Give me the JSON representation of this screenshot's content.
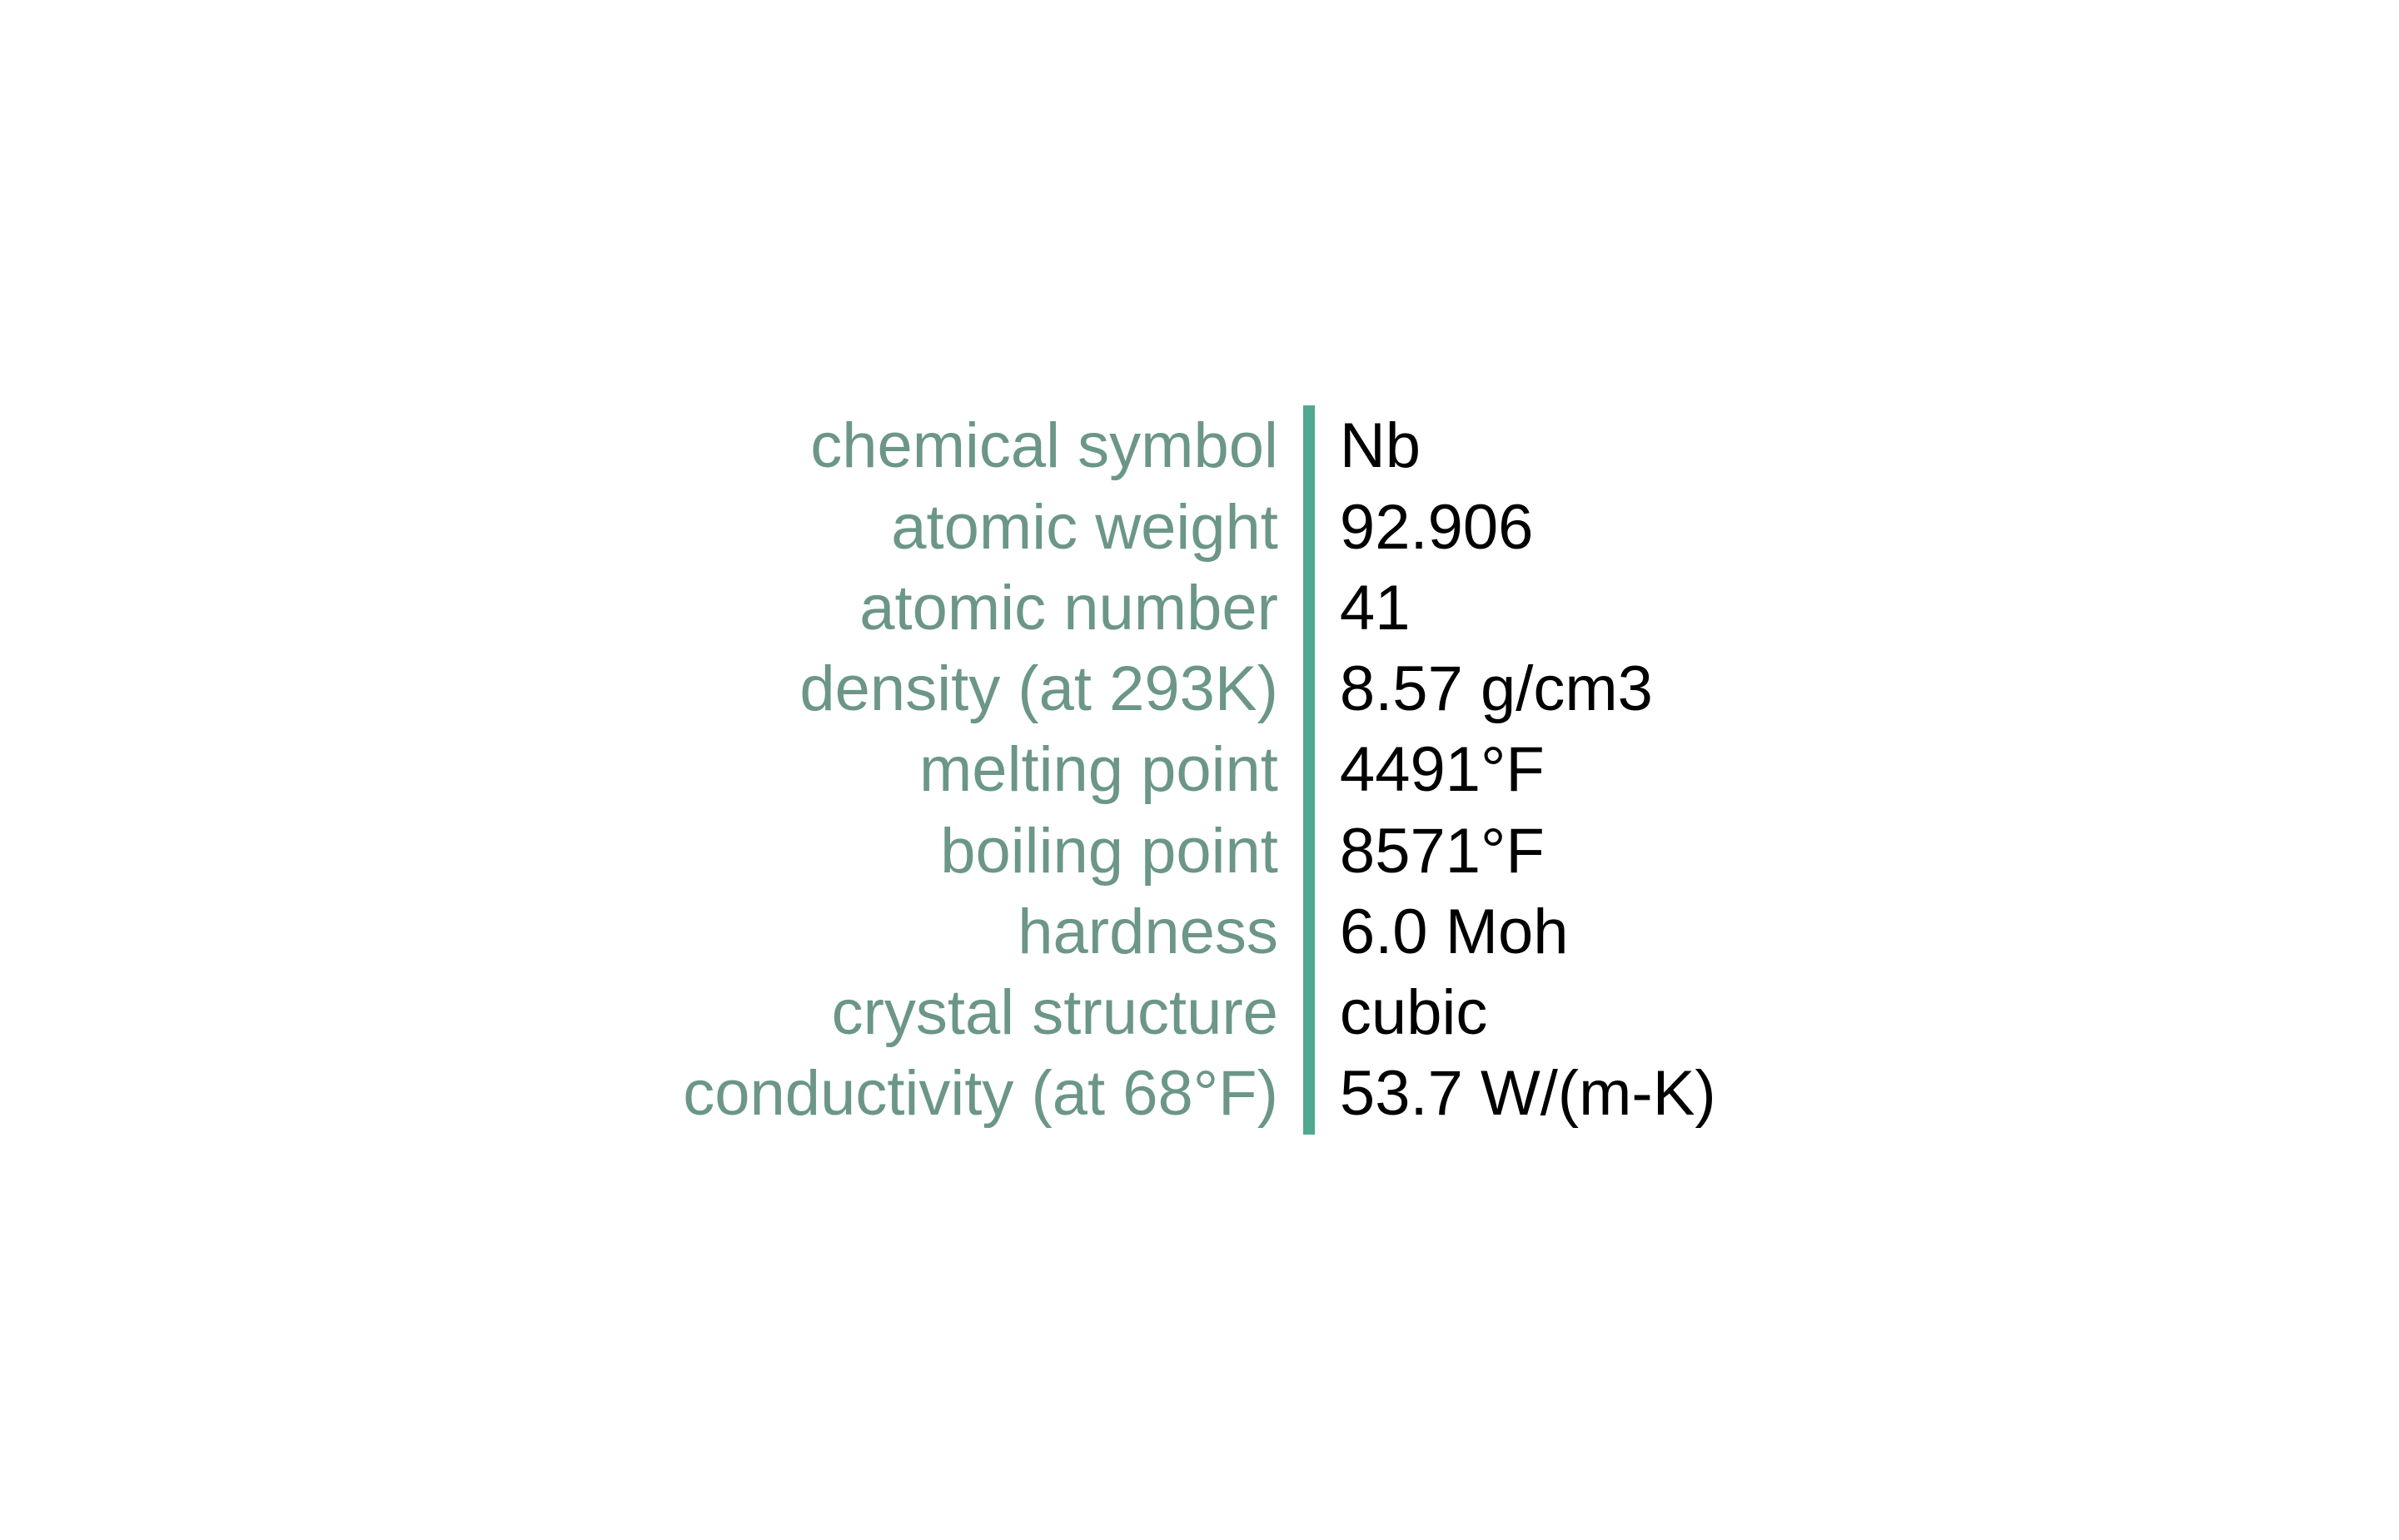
{
  "table": {
    "type": "property-list",
    "divider_color": "#4fa88f",
    "divider_width": 14,
    "label_color": "#6b9688",
    "value_color": "#000000",
    "font_size": 76,
    "line_height": 1.28,
    "background_color": "#ffffff",
    "rows": [
      {
        "label": "chemical symbol",
        "value": "Nb"
      },
      {
        "label": "atomic weight",
        "value": "92.906"
      },
      {
        "label": "atomic number",
        "value": "41"
      },
      {
        "label": "density (at 293K)",
        "value": "8.57 g/cm3"
      },
      {
        "label": "melting point",
        "value": "4491°F"
      },
      {
        "label": "boiling point",
        "value": "8571°F"
      },
      {
        "label": "hardness",
        "value": "6.0 Moh"
      },
      {
        "label": "crystal structure",
        "value": "cubic"
      },
      {
        "label": "conductivity (at 68°F)",
        "value": "53.7 W/(m-K)"
      }
    ]
  }
}
